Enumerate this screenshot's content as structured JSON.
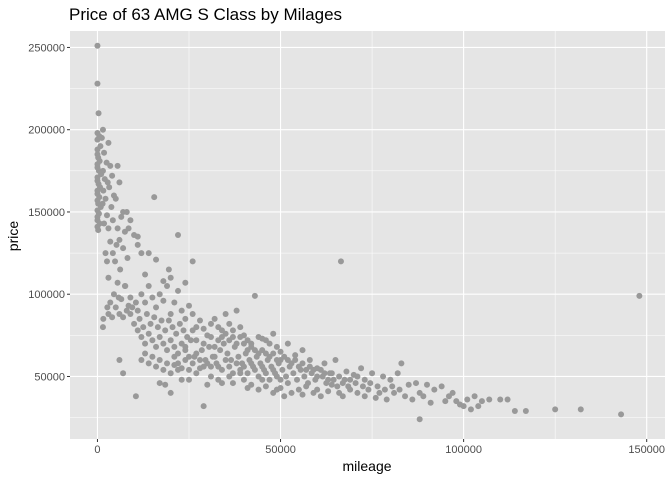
{
  "chart_data": {
    "type": "scatter",
    "title": "Price of 63 AMG S Class by Milages",
    "xlabel": "mileage",
    "ylabel": "price",
    "xlim": [
      -7500,
      155000
    ],
    "ylim": [
      12000,
      260000
    ],
    "x_ticks": [
      0,
      50000,
      100000,
      150000
    ],
    "x_tick_labels": [
      "0",
      "50000",
      "100000",
      "150000"
    ],
    "y_ticks": [
      50000,
      100000,
      150000,
      200000,
      250000
    ],
    "y_tick_labels": [
      "50000",
      "100000",
      "150000",
      "200000",
      "250000"
    ],
    "grid": true,
    "legend": "none",
    "colors": {
      "panel": "#e5e5e5",
      "grid_major": "#ffffff",
      "point": "#999999"
    },
    "points": [
      [
        0,
        251000
      ],
      [
        0,
        228000
      ],
      [
        300,
        210000
      ],
      [
        0,
        198000
      ],
      [
        500,
        196000
      ],
      [
        0,
        194000
      ],
      [
        800,
        190000
      ],
      [
        0,
        188000
      ],
      [
        0,
        185000
      ],
      [
        200,
        183000
      ],
      [
        600,
        181000
      ],
      [
        0,
        179000
      ],
      [
        0,
        177000
      ],
      [
        400,
        175000
      ],
      [
        1000,
        173000
      ],
      [
        0,
        171000
      ],
      [
        0,
        169000
      ],
      [
        300,
        167000
      ],
      [
        700,
        165000
      ],
      [
        0,
        163000
      ],
      [
        0,
        161000
      ],
      [
        500,
        159000
      ],
      [
        0,
        157000
      ],
      [
        200,
        155000
      ],
      [
        900,
        153000
      ],
      [
        0,
        151000
      ],
      [
        400,
        149000
      ],
      [
        0,
        147000
      ],
      [
        0,
        145000
      ],
      [
        600,
        143000
      ],
      [
        0,
        141000
      ],
      [
        200,
        139000
      ],
      [
        1500,
        200000
      ],
      [
        1200,
        195000
      ],
      [
        3000,
        192000
      ],
      [
        1800,
        186000
      ],
      [
        2500,
        180000
      ],
      [
        1500,
        175000
      ],
      [
        3500,
        178000
      ],
      [
        2000,
        170000
      ],
      [
        4000,
        172000
      ],
      [
        2800,
        168000
      ],
      [
        5500,
        178000
      ],
      [
        1600,
        163000
      ],
      [
        3200,
        165000
      ],
      [
        4500,
        160000
      ],
      [
        6000,
        168000
      ],
      [
        2200,
        158000
      ],
      [
        5000,
        158000
      ],
      [
        7000,
        150000
      ],
      [
        1400,
        155000
      ],
      [
        3800,
        153000
      ],
      [
        6500,
        147000
      ],
      [
        8000,
        150000
      ],
      [
        2600,
        148000
      ],
      [
        4200,
        145000
      ],
      [
        9000,
        145000
      ],
      [
        1800,
        143000
      ],
      [
        5500,
        140000
      ],
      [
        7500,
        138000
      ],
      [
        10000,
        136000
      ],
      [
        11000,
        135000
      ],
      [
        3000,
        140000
      ],
      [
        8500,
        140000
      ],
      [
        6000,
        133000
      ],
      [
        12000,
        125000
      ],
      [
        3500,
        132000
      ],
      [
        5200,
        130000
      ],
      [
        7000,
        128000
      ],
      [
        4200,
        125000
      ],
      [
        2600,
        120000
      ],
      [
        4800,
        120000
      ],
      [
        6200,
        115000
      ],
      [
        8200,
        122000
      ],
      [
        11000,
        130000
      ],
      [
        14000,
        125000
      ],
      [
        2200,
        125000
      ],
      [
        3000,
        110000
      ],
      [
        5500,
        107000
      ],
      [
        7500,
        105000
      ],
      [
        16000,
        121000
      ],
      [
        15500,
        159000
      ],
      [
        22000,
        136000
      ],
      [
        18000,
        108000
      ],
      [
        19500,
        115000
      ],
      [
        26000,
        120000
      ],
      [
        24000,
        107000
      ],
      [
        20000,
        110000
      ],
      [
        13000,
        112000
      ],
      [
        1600,
        85000
      ],
      [
        1500,
        80000
      ],
      [
        2700,
        92000
      ],
      [
        3500,
        95000
      ],
      [
        4500,
        100000
      ],
      [
        5800,
        98000
      ],
      [
        6500,
        97000
      ],
      [
        7600,
        105000
      ],
      [
        8500,
        93000
      ],
      [
        9500,
        92000
      ],
      [
        10500,
        95000
      ],
      [
        11000,
        90000
      ],
      [
        12000,
        100000
      ],
      [
        13000,
        95000
      ],
      [
        14000,
        105000
      ],
      [
        15000,
        98000
      ],
      [
        16000,
        92000
      ],
      [
        17000,
        100000
      ],
      [
        18000,
        96000
      ],
      [
        19000,
        105000
      ],
      [
        20000,
        88000
      ],
      [
        21000,
        95000
      ],
      [
        22000,
        102000
      ],
      [
        23000,
        90000
      ],
      [
        24000,
        85000
      ],
      [
        25000,
        93000
      ],
      [
        26000,
        88000
      ],
      [
        27000,
        80000
      ],
      [
        28000,
        84000
      ],
      [
        29000,
        79000
      ],
      [
        30000,
        75000
      ],
      [
        31000,
        82000
      ],
      [
        32000,
        85000
      ],
      [
        33000,
        80000
      ],
      [
        34000,
        78000
      ],
      [
        35000,
        88000
      ],
      [
        36000,
        82000
      ],
      [
        37000,
        78000
      ],
      [
        38000,
        90000
      ],
      [
        39000,
        80000
      ],
      [
        40000,
        75000
      ],
      [
        41000,
        72000
      ],
      [
        42000,
        70000
      ],
      [
        43000,
        99000
      ],
      [
        44000,
        74000
      ],
      [
        45000,
        73000
      ],
      [
        46000,
        72000
      ],
      [
        47000,
        70000
      ],
      [
        48000,
        76000
      ],
      [
        49000,
        68000
      ],
      [
        50000,
        65000
      ],
      [
        52000,
        70000
      ],
      [
        54000,
        63000
      ],
      [
        56000,
        66000
      ],
      [
        58000,
        60000
      ],
      [
        60000,
        55000
      ],
      [
        62000,
        58000
      ],
      [
        65000,
        60000
      ],
      [
        66500,
        120000
      ],
      [
        68000,
        53000
      ],
      [
        70000,
        51000
      ],
      [
        72000,
        55000
      ],
      [
        75000,
        52000
      ],
      [
        78000,
        50000
      ],
      [
        80000,
        48000
      ],
      [
        82000,
        52000
      ],
      [
        83000,
        58000
      ],
      [
        85000,
        45000
      ],
      [
        87000,
        46000
      ],
      [
        88000,
        40000
      ],
      [
        90000,
        45000
      ],
      [
        92000,
        42000
      ],
      [
        94000,
        44000
      ],
      [
        96000,
        38000
      ],
      [
        97000,
        40000
      ],
      [
        98000,
        35000
      ],
      [
        99000,
        33000
      ],
      [
        100000,
        32000
      ],
      [
        101000,
        36000
      ],
      [
        102000,
        30000
      ],
      [
        103000,
        38000
      ],
      [
        104000,
        32000
      ],
      [
        105000,
        35000
      ],
      [
        107000,
        36000
      ],
      [
        110000,
        36000
      ],
      [
        112000,
        36000
      ],
      [
        114000,
        29000
      ],
      [
        117000,
        29000
      ],
      [
        125000,
        30000
      ],
      [
        132000,
        30000
      ],
      [
        143000,
        27000
      ],
      [
        148000,
        99000
      ],
      [
        88000,
        24000
      ],
      [
        29000,
        32000
      ],
      [
        6000,
        60000
      ],
      [
        7000,
        52000
      ],
      [
        10500,
        38000
      ],
      [
        17000,
        46000
      ],
      [
        18500,
        45000
      ],
      [
        20000,
        40000
      ],
      [
        21000,
        57000
      ],
      [
        22000,
        54000
      ],
      [
        23000,
        48000
      ],
      [
        25000,
        48000
      ],
      [
        27000,
        52000
      ],
      [
        28000,
        55000
      ],
      [
        30000,
        45000
      ],
      [
        31000,
        50000
      ],
      [
        33000,
        48000
      ],
      [
        34000,
        46000
      ],
      [
        36000,
        50000
      ],
      [
        37000,
        46000
      ],
      [
        39000,
        52000
      ],
      [
        40000,
        48000
      ],
      [
        41000,
        43000
      ],
      [
        42000,
        45000
      ],
      [
        44000,
        42000
      ],
      [
        45000,
        48000
      ],
      [
        46000,
        44000
      ],
      [
        48000,
        40000
      ],
      [
        49000,
        42000
      ],
      [
        50000,
        43000
      ],
      [
        51000,
        38000
      ],
      [
        52000,
        46000
      ],
      [
        53000,
        40000
      ],
      [
        55000,
        42000
      ],
      [
        56000,
        39000
      ],
      [
        57000,
        44000
      ],
      [
        59000,
        40000
      ],
      [
        60000,
        42000
      ],
      [
        61000,
        38000
      ],
      [
        63000,
        41000
      ],
      [
        64000,
        45000
      ],
      [
        66000,
        40000
      ],
      [
        67000,
        38000
      ],
      [
        69000,
        42000
      ],
      [
        71000,
        40000
      ],
      [
        73000,
        38000
      ],
      [
        74000,
        42000
      ],
      [
        76000,
        37000
      ],
      [
        77000,
        40000
      ],
      [
        79000,
        36000
      ],
      [
        81000,
        40000
      ],
      [
        84000,
        38000
      ],
      [
        86000,
        36000
      ],
      [
        89000,
        38000
      ],
      [
        91000,
        34000
      ],
      [
        95000,
        35000
      ],
      [
        24000,
        68000
      ],
      [
        25500,
        72000
      ],
      [
        26500,
        62000
      ],
      [
        28500,
        66000
      ],
      [
        29500,
        60000
      ],
      [
        30500,
        68000
      ],
      [
        31500,
        62000
      ],
      [
        32500,
        58000
      ],
      [
        33500,
        66000
      ],
      [
        34500,
        70000
      ],
      [
        35500,
        64000
      ],
      [
        36500,
        60000
      ],
      [
        37500,
        68000
      ],
      [
        38500,
        62000
      ],
      [
        39500,
        58000
      ],
      [
        40500,
        64000
      ],
      [
        41500,
        60000
      ],
      [
        42500,
        56000
      ],
      [
        43500,
        62000
      ],
      [
        44500,
        58000
      ],
      [
        45500,
        54000
      ],
      [
        46500,
        60000
      ],
      [
        47500,
        56000
      ],
      [
        48500,
        52000
      ],
      [
        49500,
        58000
      ],
      [
        50500,
        54000
      ],
      [
        51500,
        50000
      ],
      [
        52500,
        56000
      ],
      [
        53500,
        52000
      ],
      [
        54500,
        48000
      ],
      [
        55500,
        54000
      ],
      [
        56500,
        50000
      ],
      [
        57500,
        46000
      ],
      [
        58500,
        52000
      ],
      [
        59500,
        48000
      ],
      [
        61500,
        50000
      ],
      [
        62500,
        46000
      ],
      [
        63500,
        52000
      ],
      [
        64500,
        48000
      ],
      [
        65500,
        44000
      ],
      [
        67500,
        48000
      ],
      [
        68500,
        44000
      ],
      [
        70500,
        46000
      ],
      [
        72500,
        44000
      ],
      [
        74500,
        46000
      ],
      [
        76500,
        44000
      ],
      [
        78500,
        42000
      ],
      [
        80500,
        44000
      ],
      [
        82500,
        42000
      ],
      [
        26000,
        78000
      ],
      [
        27000,
        72000
      ],
      [
        29000,
        70000
      ],
      [
        31000,
        74000
      ],
      [
        32000,
        68000
      ],
      [
        33000,
        72000
      ],
      [
        34000,
        74000
      ],
      [
        35000,
        76000
      ],
      [
        36000,
        72000
      ],
      [
        37000,
        74000
      ],
      [
        38000,
        70000
      ],
      [
        39000,
        74000
      ],
      [
        40000,
        70000
      ],
      [
        41000,
        66000
      ],
      [
        42000,
        68000
      ],
      [
        43000,
        66000
      ],
      [
        44000,
        64000
      ],
      [
        45000,
        66000
      ],
      [
        46000,
        64000
      ],
      [
        47000,
        62000
      ],
      [
        48000,
        64000
      ],
      [
        49000,
        60000
      ],
      [
        50000,
        60000
      ],
      [
        51000,
        62000
      ],
      [
        52000,
        60000
      ],
      [
        53000,
        58000
      ],
      [
        54000,
        60000
      ],
      [
        55000,
        56000
      ],
      [
        56000,
        58000
      ],
      [
        57000,
        54000
      ],
      [
        58000,
        56000
      ],
      [
        59000,
        54000
      ],
      [
        60000,
        50000
      ],
      [
        61000,
        54000
      ],
      [
        62000,
        52000
      ],
      [
        63000,
        48000
      ],
      [
        64000,
        52000
      ],
      [
        66000,
        50000
      ],
      [
        67000,
        46000
      ],
      [
        69000,
        48000
      ],
      [
        71000,
        50000
      ],
      [
        73000,
        48000
      ],
      [
        11500,
        85000
      ],
      [
        12500,
        80000
      ],
      [
        13500,
        88000
      ],
      [
        14500,
        82000
      ],
      [
        15500,
        86000
      ],
      [
        16500,
        80000
      ],
      [
        17500,
        84000
      ],
      [
        18500,
        78000
      ],
      [
        19500,
        84000
      ],
      [
        20500,
        80000
      ],
      [
        21500,
        76000
      ],
      [
        22500,
        82000
      ],
      [
        23500,
        78000
      ],
      [
        24500,
        74000
      ],
      [
        9000,
        88000
      ],
      [
        10000,
        82000
      ],
      [
        11000,
        78000
      ],
      [
        12000,
        74000
      ],
      [
        13000,
        70000
      ],
      [
        14000,
        76000
      ],
      [
        15000,
        72000
      ],
      [
        16000,
        68000
      ],
      [
        17000,
        74000
      ],
      [
        18000,
        70000
      ],
      [
        19000,
        66000
      ],
      [
        20000,
        72000
      ],
      [
        21000,
        68000
      ],
      [
        22000,
        64000
      ],
      [
        23000,
        70000
      ],
      [
        24000,
        66000
      ],
      [
        25000,
        62000
      ],
      [
        26000,
        58000
      ],
      [
        27000,
        64000
      ],
      [
        28000,
        60000
      ],
      [
        29000,
        56000
      ],
      [
        30000,
        58000
      ],
      [
        31000,
        56000
      ],
      [
        32000,
        62000
      ],
      [
        33000,
        56000
      ],
      [
        34000,
        54000
      ],
      [
        35000,
        60000
      ],
      [
        36000,
        56000
      ],
      [
        37000,
        52000
      ],
      [
        38000,
        58000
      ],
      [
        39000,
        54000
      ],
      [
        40000,
        56000
      ],
      [
        41000,
        52000
      ],
      [
        42000,
        58000
      ],
      [
        43000,
        54000
      ],
      [
        44000,
        50000
      ],
      [
        45000,
        56000
      ],
      [
        46000,
        52000
      ],
      [
        47000,
        48000
      ],
      [
        48000,
        54000
      ],
      [
        49000,
        50000
      ],
      [
        50000,
        48000
      ],
      [
        3000,
        88000
      ],
      [
        4000,
        86000
      ],
      [
        5000,
        92000
      ],
      [
        6000,
        88000
      ],
      [
        7000,
        86000
      ],
      [
        8000,
        90000
      ],
      [
        9000,
        98000
      ],
      [
        12000,
        60000
      ],
      [
        13000,
        64000
      ],
      [
        14000,
        58000
      ],
      [
        15000,
        62000
      ],
      [
        16000,
        56000
      ],
      [
        17000,
        60000
      ],
      [
        18000,
        54000
      ],
      [
        19000,
        58000
      ],
      [
        20000,
        52000
      ],
      [
        21000,
        62000
      ],
      [
        22000,
        58000
      ],
      [
        23000,
        55000
      ],
      [
        24000,
        60000
      ],
      [
        25000,
        54000
      ]
    ]
  }
}
